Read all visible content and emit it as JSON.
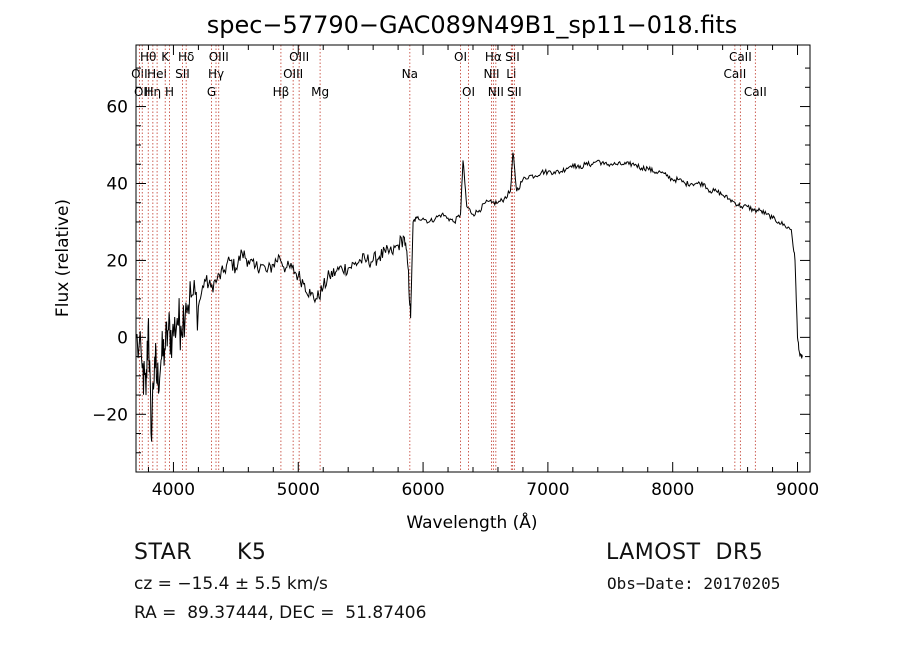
{
  "chart_data": {
    "type": "line",
    "title": "spec−57790−GAC089N49B1_sp11−018.fits",
    "xlabel": "Wavelength (Å)",
    "ylabel": "Flux (relative)",
    "xlim": [
      3700,
      9100
    ],
    "ylim": [
      -35,
      76
    ],
    "xticks": [
      4000,
      5000,
      6000,
      7000,
      8000,
      9000
    ],
    "yticks": [
      -20,
      0,
      20,
      40,
      60
    ],
    "ytick_labels": [
      "−20",
      "0",
      "20",
      "40",
      "60"
    ],
    "grid": false,
    "series": [
      {
        "x": [
          3700,
          3750,
          3780,
          3800,
          3820,
          3850,
          3870,
          3900,
          3930,
          3960,
          3990,
          4030,
          4060,
          4100,
          4150,
          4200,
          4250,
          4300,
          4350,
          4400,
          4450,
          4500,
          4550,
          4600,
          4650,
          4700,
          4750,
          4800,
          4850,
          4900,
          4950,
          5000,
          5050,
          5100,
          5150,
          5200,
          5250,
          5300,
          5350,
          5400,
          5450,
          5500,
          5550,
          5600,
          5650,
          5700,
          5750,
          5800,
          5850,
          5880,
          5900,
          5920,
          5950,
          6000,
          6050,
          6100,
          6150,
          6200,
          6250,
          6300,
          6320,
          6350,
          6400,
          6450,
          6500,
          6550,
          6600,
          6650,
          6700,
          6720,
          6750,
          6800,
          6850,
          6900,
          6950,
          7000,
          7050,
          7100,
          7150,
          7200,
          7250,
          7300,
          7350,
          7400,
          7450,
          7500,
          7550,
          7600,
          7650,
          7700,
          7750,
          7800,
          7850,
          7900,
          7950,
          8000,
          8050,
          8100,
          8150,
          8200,
          8250,
          8300,
          8350,
          8400,
          8450,
          8500,
          8550,
          8600,
          8650,
          8700,
          8750,
          8800,
          8850,
          8900,
          8950,
          8980,
          9000,
          9020,
          9040
        ],
        "y": [
          0,
          -8,
          -15,
          5,
          -25,
          -5,
          -12,
          -6,
          -3,
          2,
          0,
          5,
          3,
          9,
          11,
          8,
          15,
          13,
          15,
          17,
          20,
          18,
          22,
          20,
          18,
          19,
          17,
          19,
          21,
          18,
          18,
          16,
          14,
          11,
          10,
          13,
          16,
          17,
          18,
          18,
          19,
          20,
          20,
          20,
          21,
          22,
          22,
          24,
          26,
          18,
          5,
          30,
          31,
          31,
          30,
          31,
          32,
          31,
          30,
          32,
          46,
          34,
          32,
          33,
          35,
          35,
          35,
          36,
          38,
          48,
          38,
          41,
          42,
          42,
          43,
          43,
          43,
          43,
          44,
          45,
          44,
          45,
          45,
          46,
          45,
          45,
          45,
          45,
          45,
          45,
          44,
          44,
          43,
          43,
          42,
          41,
          41,
          40,
          40,
          40,
          40,
          38,
          38,
          37,
          36,
          35,
          34,
          34,
          33,
          33,
          32,
          31,
          30,
          29,
          28,
          20,
          0,
          -5,
          -5
        ]
      }
    ],
    "line_marks": [
      {
        "x": 3727,
        "labels": [
          "OII"
        ],
        "row": 2
      },
      {
        "x": 3750,
        "labels": [
          "OII"
        ],
        "row": 3
      },
      {
        "x": 3798,
        "labels": [
          "Hθ"
        ],
        "row": 1
      },
      {
        "x": 3835,
        "labels": [
          "Hη"
        ],
        "row": 3
      },
      {
        "x": 3869,
        "labels": [
          "HeI"
        ],
        "row": 2
      },
      {
        "x": 3934,
        "labels": [
          "K"
        ],
        "row": 1
      },
      {
        "x": 3969,
        "labels": [
          "H"
        ],
        "row": 3
      },
      {
        "x": 4072,
        "labels": [
          "SII"
        ],
        "row": 2
      },
      {
        "x": 4102,
        "labels": [
          "Hδ"
        ],
        "row": 1
      },
      {
        "x": 4305,
        "labels": [
          "G"
        ],
        "row": 3
      },
      {
        "x": 4341,
        "labels": [
          "Hγ"
        ],
        "row": 2
      },
      {
        "x": 4363,
        "labels": [
          "OIII"
        ],
        "row": 1
      },
      {
        "x": 4861,
        "labels": [
          "Hβ"
        ],
        "row": 3
      },
      {
        "x": 4959,
        "labels": [
          "OIII"
        ],
        "row": 2
      },
      {
        "x": 5007,
        "labels": [
          "OIII"
        ],
        "row": 1
      },
      {
        "x": 5175,
        "labels": [
          "Mg"
        ],
        "row": 3
      },
      {
        "x": 5894,
        "labels": [
          "Na"
        ],
        "row": 2
      },
      {
        "x": 6300,
        "labels": [
          "OI"
        ],
        "row": 1
      },
      {
        "x": 6364,
        "labels": [
          "OI"
        ],
        "row": 3
      },
      {
        "x": 6548,
        "labels": [
          "NII"
        ],
        "row": 2
      },
      {
        "x": 6563,
        "labels": [
          "Hα"
        ],
        "row": 1
      },
      {
        "x": 6583,
        "labels": [
          "NII"
        ],
        "row": 3
      },
      {
        "x": 6707,
        "labels": [
          "Li"
        ],
        "row": 2
      },
      {
        "x": 6716,
        "labels": [
          "SII"
        ],
        "row": 1
      },
      {
        "x": 6731,
        "labels": [
          "SII"
        ],
        "row": 3
      },
      {
        "x": 8498,
        "labels": [
          "CaII"
        ],
        "row": 2
      },
      {
        "x": 8542,
        "labels": [
          "CaII"
        ],
        "row": 1
      },
      {
        "x": 8662,
        "labels": [
          "CaII"
        ],
        "row": 3
      }
    ]
  },
  "info": {
    "class": "STAR",
    "subclass": "K5",
    "survey": "LAMOST  DR5",
    "cz": "cz = −15.4 ± 5.5 km/s",
    "obs_date": "Obs−Date: 20170205",
    "radec": "RA =  89.37444, DEC =  51.87406"
  }
}
